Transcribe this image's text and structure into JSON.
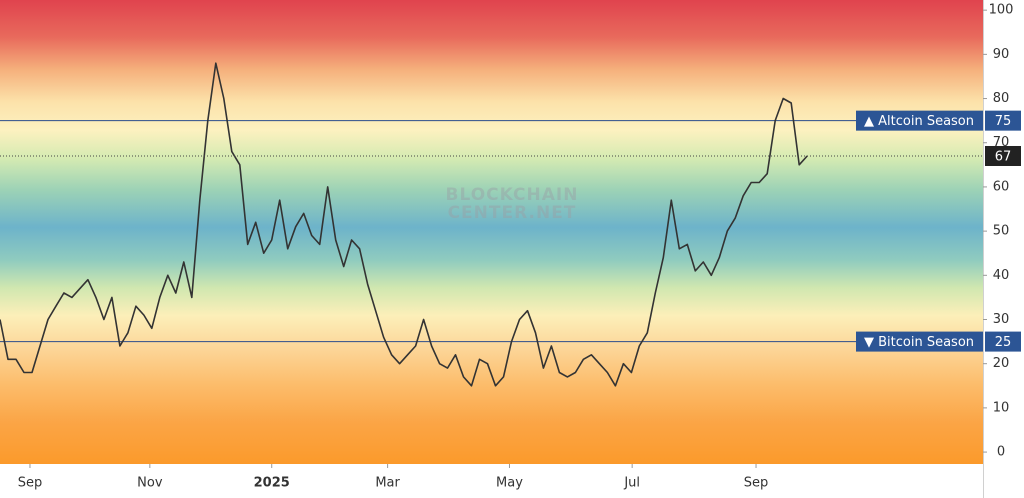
{
  "chart_data": {
    "type": "line",
    "color": "#333333",
    "values": [
      30,
      21,
      21,
      18,
      18,
      24,
      30,
      33,
      36,
      35,
      37,
      39,
      35,
      30,
      35,
      24,
      27,
      33,
      31,
      28,
      35,
      40,
      36,
      43,
      35,
      57,
      75,
      88,
      80,
      68,
      65,
      47,
      52,
      45,
      48,
      57,
      46,
      51,
      54,
      49,
      47,
      60,
      48,
      42,
      48,
      46,
      38,
      32,
      26,
      22,
      20,
      22,
      24,
      30,
      24,
      20,
      19,
      22,
      17,
      15,
      21,
      20,
      15,
      17,
      25,
      30,
      32,
      27,
      19,
      24,
      18,
      17,
      18,
      21,
      22,
      20,
      18,
      15,
      20,
      18,
      24,
      27,
      36,
      44,
      57,
      46,
      47,
      41,
      43,
      40,
      44,
      50,
      53,
      58,
      61,
      61,
      63,
      75,
      80,
      79,
      65,
      67
    ],
    "xlim": [
      0,
      123
    ],
    "xticks": [
      {
        "value": 3.75,
        "label": "Sep"
      },
      {
        "value": 18.75,
        "label": "Nov"
      },
      {
        "value": 34,
        "label": "2025"
      },
      {
        "value": 48.5,
        "label": "Mar"
      },
      {
        "value": 63.75,
        "label": "May"
      },
      {
        "value": 79.1,
        "label": "Jul"
      },
      {
        "value": 94.6,
        "label": "Sep"
      }
    ],
    "ylim": [
      -2.7,
      102.3
    ],
    "yticks": [
      0,
      10,
      20,
      30,
      40,
      50,
      60,
      70,
      80,
      90,
      100
    ],
    "thresholds": [
      {
        "value": 75,
        "label": "▲ Altcoin Season"
      },
      {
        "value": 25,
        "label": "▼ Bitcoin Season"
      }
    ],
    "watermark": [
      "BLOCKCHAIN",
      "CENTER.NET"
    ]
  }
}
